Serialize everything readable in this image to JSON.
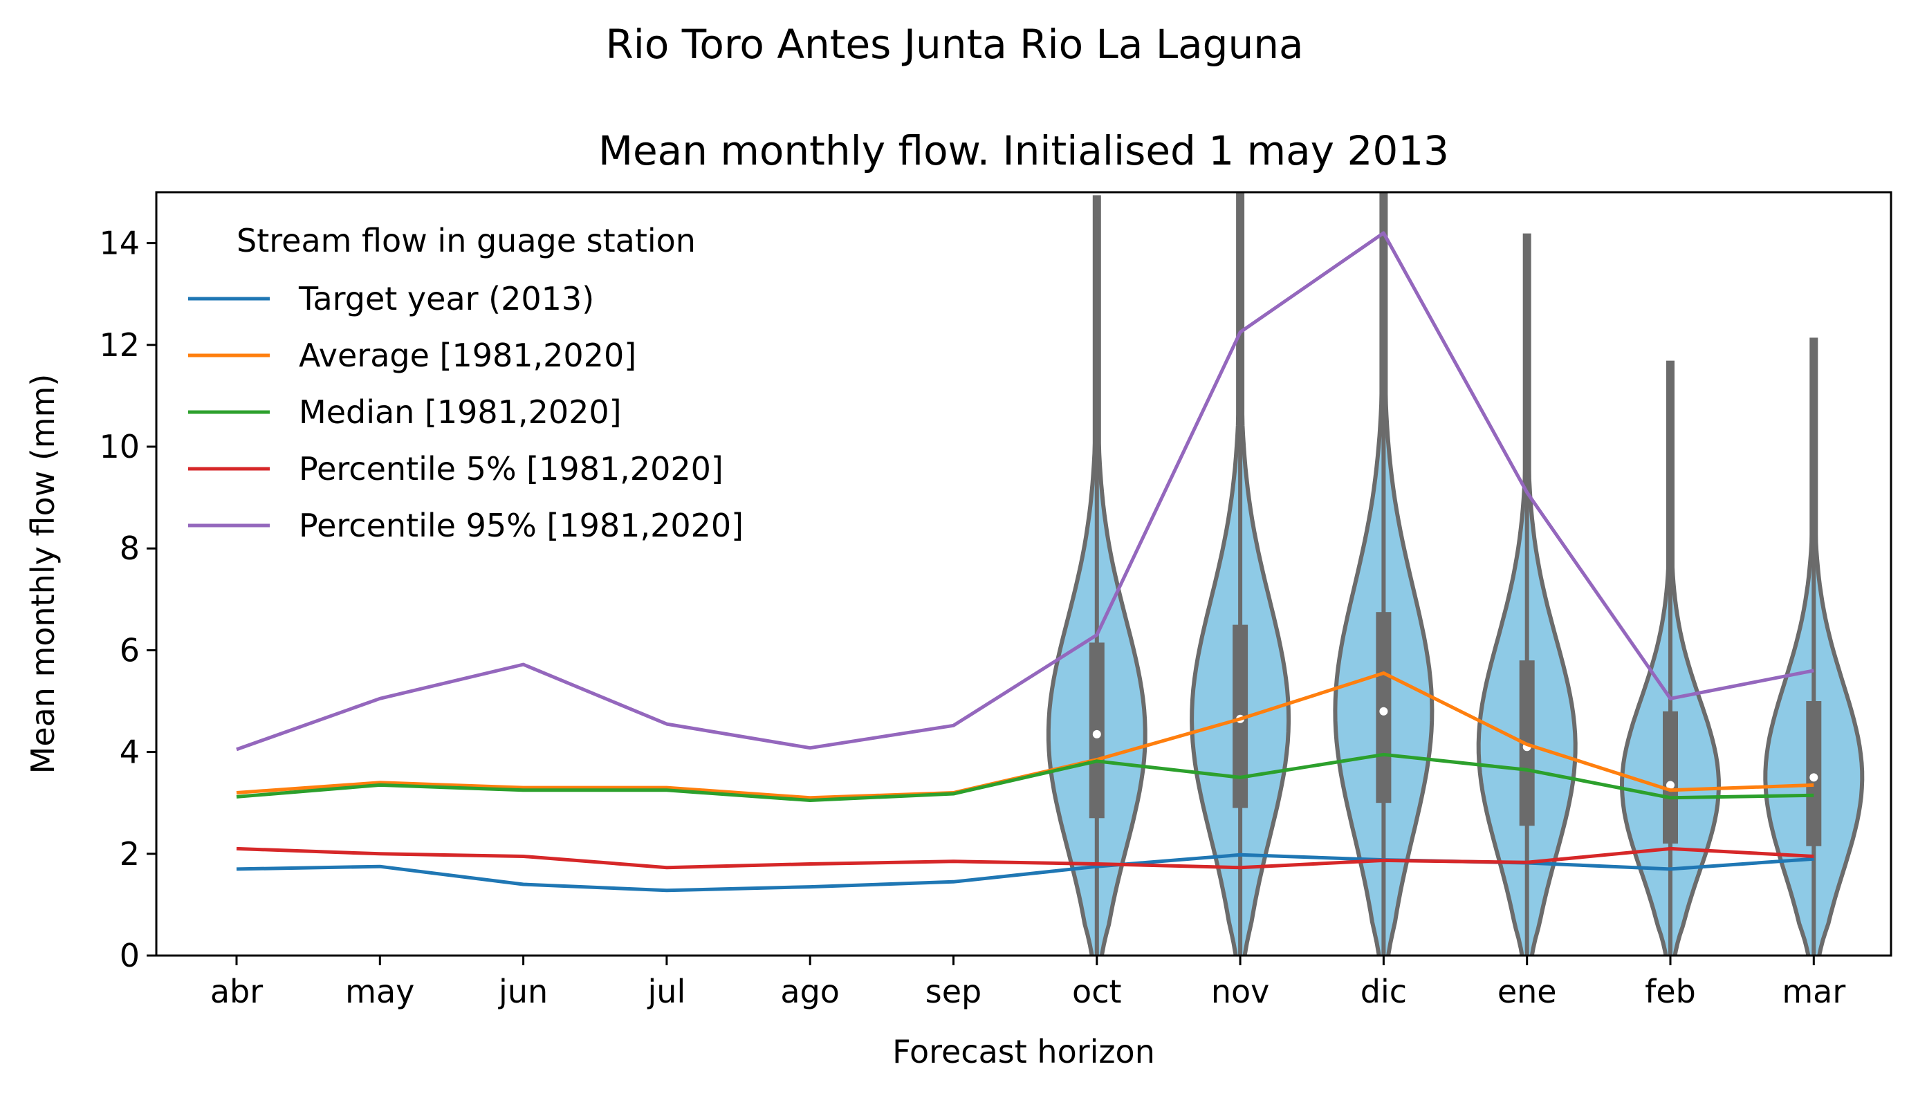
{
  "suptitle": "Rio Toro Antes Junta Rio La Laguna",
  "chart_data": {
    "type": "line",
    "title": "Mean monthly flow. Initialised 1 may 2013",
    "xlabel": "Forecast horizon",
    "ylabel": "Mean monthly flow (mm)",
    "ylim": [
      0,
      15
    ],
    "yticks": [
      0,
      2,
      4,
      6,
      8,
      10,
      12,
      14
    ],
    "categories": [
      "abr",
      "may",
      "jun",
      "jul",
      "ago",
      "sep",
      "oct",
      "nov",
      "dic",
      "ene",
      "feb",
      "mar"
    ],
    "legend": {
      "title": "Stream flow in guage station",
      "placement": "upper-left"
    },
    "series": [
      {
        "name": "Target year (2013)",
        "color": "#1f77b4",
        "values": [
          1.7,
          1.75,
          1.4,
          1.28,
          1.35,
          1.45,
          1.75,
          1.98,
          1.88,
          1.82,
          1.7,
          1.9
        ]
      },
      {
        "name": "Average [1981,2020]",
        "color": "#ff7f0e",
        "values": [
          3.2,
          3.4,
          3.3,
          3.3,
          3.1,
          3.2,
          3.85,
          4.65,
          5.55,
          4.15,
          3.25,
          3.35
        ]
      },
      {
        "name": "Median [1981,2020]",
        "color": "#2ca02c",
        "values": [
          3.12,
          3.35,
          3.25,
          3.25,
          3.05,
          3.18,
          3.82,
          3.5,
          3.95,
          3.65,
          3.1,
          3.15
        ]
      },
      {
        "name": "Percentile 5% [1981,2020]",
        "color": "#d62728",
        "values": [
          2.1,
          2.0,
          1.95,
          1.73,
          1.8,
          1.85,
          1.8,
          1.73,
          1.87,
          1.83,
          2.1,
          1.95
        ]
      },
      {
        "name": "Percentile 95% [1981,2020]",
        "color": "#9467bd",
        "values": [
          4.05,
          5.05,
          5.72,
          4.55,
          4.08,
          4.52,
          6.3,
          12.25,
          14.2,
          9.1,
          5.05,
          5.6
        ]
      }
    ],
    "violins": {
      "fill_color": "#8ecae6",
      "edge_color": "#6b6b6b",
      "items": [
        {
          "category": "oct",
          "min": 0.0,
          "max": 14.5,
          "q1": 2.7,
          "median": 4.35,
          "q3": 6.15
        },
        {
          "category": "nov",
          "min": 0.0,
          "max": 15.0,
          "q1": 2.9,
          "median": 4.65,
          "q3": 6.5
        },
        {
          "category": "dic",
          "min": 0.0,
          "max": 15.0,
          "q1": 3.0,
          "median": 4.8,
          "q3": 6.75
        },
        {
          "category": "ene",
          "min": 0.0,
          "max": 13.75,
          "q1": 2.55,
          "median": 4.1,
          "q3": 5.8
        },
        {
          "category": "feb",
          "min": 0.0,
          "max": 11.25,
          "q1": 2.2,
          "median": 3.35,
          "q3": 4.8
        },
        {
          "category": "mar",
          "min": 0.0,
          "max": 11.7,
          "q1": 2.15,
          "median": 3.5,
          "q3": 5.0
        }
      ]
    }
  }
}
